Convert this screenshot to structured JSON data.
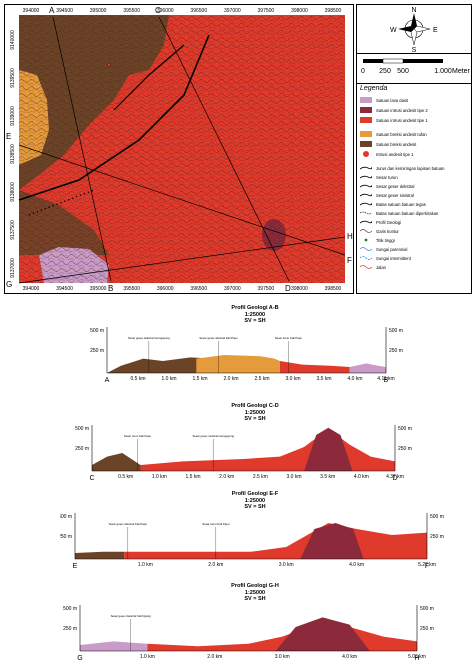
{
  "map": {
    "top_ticks": [
      "394000",
      "394500",
      "395000",
      "395500",
      "396000",
      "396500",
      "397000",
      "397500",
      "398000",
      "398500"
    ],
    "bottom_ticks": [
      "394000",
      "394500",
      "395000",
      "395500",
      "396000",
      "396500",
      "397000",
      "397500",
      "398000",
      "398500"
    ],
    "left_ticks": [
      "9140000",
      "9139500",
      "9139000",
      "9138500",
      "9138000",
      "9137500",
      "9137000"
    ],
    "section_letters": {
      "A": "A",
      "B": "B",
      "C": "C",
      "D": "D",
      "E": "E",
      "F": "F",
      "G": "G",
      "H": "H"
    },
    "colors": {
      "red_unit": "#e03a2c",
      "brown_unit": "#6b4428",
      "orange_unit": "#e59a3c",
      "pink_unit": "#c99bc9",
      "dark_red_unit": "#8c2a3c",
      "contour": "#4a1a10"
    }
  },
  "compass": {
    "n": "N",
    "s": "S",
    "e": "E",
    "w": "W"
  },
  "scalebar": {
    "labels": [
      "0",
      "250",
      "500",
      "1.000"
    ],
    "unit": "Meter"
  },
  "legend": {
    "title": "Legenda",
    "units": [
      {
        "label": "Satuan lava dasit",
        "color": "#c99bc9"
      },
      {
        "label": "Satuan intrusi andesit tipe 2",
        "color": "#8c2a3c"
      },
      {
        "label": "Satuan intrusi andesit tipe 1",
        "color": "#e03a2c"
      },
      {
        "label": "Satuan breksi andesit tufan",
        "color": "#e59a3c"
      },
      {
        "label": "Satuan breksi andesit",
        "color": "#6b4428"
      },
      {
        "label": "Intrusi andesit tipe 1",
        "color": "#e03a2c"
      }
    ],
    "symbols": [
      {
        "label": "Jurus dan kemiringan lapisan batuan",
        "icon": "strike-dip-icon"
      },
      {
        "label": "Sesar turun",
        "icon": "normal-fault-icon"
      },
      {
        "label": "Sesar geser dekstral",
        "icon": "dextral-fault-icon"
      },
      {
        "label": "Sesar geser sinistral",
        "icon": "sinistral-fault-icon"
      },
      {
        "label": "Batas satuan batuan tegas",
        "icon": "contact-line-icon"
      },
      {
        "label": "Batas satuan batuan diperkirakan",
        "icon": "inferred-contact-icon"
      },
      {
        "label": "Profil Geologi",
        "icon": "profile-line-icon"
      },
      {
        "label": "Garis kontur",
        "icon": "contour-line-icon"
      },
      {
        "label": "Titik tinggi",
        "icon": "spot-height-icon"
      },
      {
        "label": "Sungai parennial",
        "icon": "river-perennial-icon"
      },
      {
        "label": "Sungai intermittent",
        "icon": "river-intermittent-icon"
      },
      {
        "label": "Jalan",
        "icon": "road-icon"
      }
    ]
  },
  "profiles": [
    {
      "title": "Profil Geologi A-B",
      "scale": "1:25000",
      "sv": "SV = SH",
      "start": "A",
      "end": "B",
      "left_axis": [
        "500 m",
        "250 m"
      ],
      "right_axis": [
        "500 m",
        "250 m"
      ],
      "ticks": [
        "0.5 km",
        "1.0 km",
        "1.5 km",
        "2.0 km",
        "2.5 km",
        "3.0 km",
        "3.5 km",
        "4.0 km",
        "4.11 km"
      ],
      "fault_notes": [
        "Sesar geser dekstral Gorogayong",
        "Sesar geser dekstral Kali Papu",
        "Sesar turun Kali Papu"
      ]
    },
    {
      "title": "Profil Geologi C-D",
      "scale": "1:25000",
      "sv": "SV = SH",
      "start": "C",
      "end": "D",
      "left_axis": [
        "500 m",
        "250 m"
      ],
      "right_axis": [
        "500 m",
        "250 m"
      ],
      "ticks": [
        "0.5 km",
        "1.0 km",
        "1.5 km",
        "2.0 km",
        "2.5 km",
        "3.0 km",
        "3.5 km",
        "4.0 km",
        "4.37 km"
      ],
      "fault_notes": [
        "Sesar turun Kali Papu",
        "Sesar geser sinistral Gorogayong"
      ]
    },
    {
      "title": "Profil Geologi E-F",
      "scale": "1:25000",
      "sv": "SV = SH",
      "start": "E",
      "end": "F",
      "left_axis": [
        "500 m",
        "250 m"
      ],
      "right_axis": [
        "500 m",
        "250 m"
      ],
      "ticks": [
        "1.0 km",
        "2.0 km",
        "3.0 km",
        "4.0 km",
        "5.27 km"
      ],
      "fault_notes": [
        "Sesar geser dekstral Kali Papu",
        "Sesar turun Kali Papu"
      ]
    },
    {
      "title": "Profil Geologi G-H",
      "scale": "1:25000",
      "sv": "SV = SH",
      "start": "G",
      "end": "H",
      "left_axis": [
        "500 m",
        "250 m"
      ],
      "right_axis": [
        "500 m",
        "250 m"
      ],
      "ticks": [
        "1.0 km",
        "2.0 km",
        "3.0 km",
        "4.0 km",
        "5.03 km"
      ],
      "fault_notes": [
        "Sesar geser dekstral Kali Ngutig"
      ]
    }
  ]
}
